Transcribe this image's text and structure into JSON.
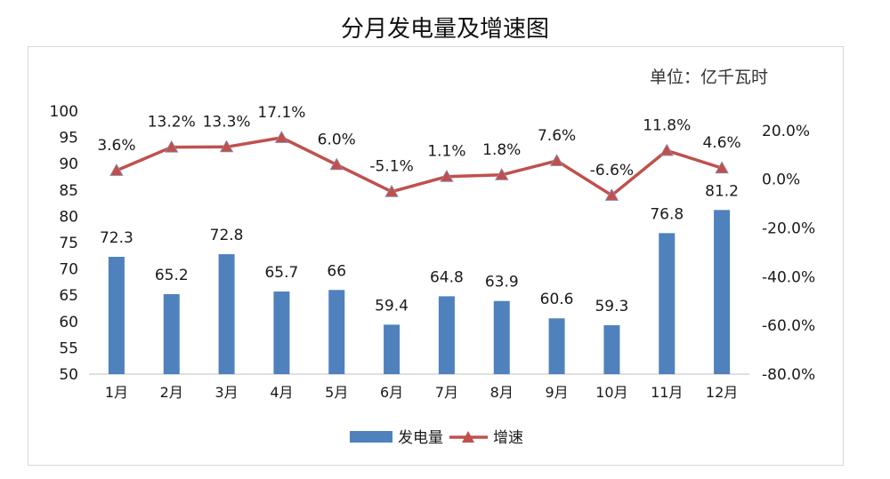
{
  "title": "分月发电量及增速图",
  "unit_label": "单位：亿千瓦时",
  "colors": {
    "bar": "#4f81bd",
    "line": "#c0504d",
    "text": "#1a1a1a",
    "axis": "#bfbfbf"
  },
  "chart_data": {
    "type": "bar",
    "title": "分月发电量及增速图",
    "categories": [
      "1月",
      "2月",
      "3月",
      "4月",
      "5月",
      "6月",
      "7月",
      "8月",
      "9月",
      "10月",
      "11月",
      "12月"
    ],
    "series": [
      {
        "name": "发电量",
        "type": "bar",
        "axis": "left",
        "values": [
          72.3,
          65.2,
          72.8,
          65.7,
          66,
          59.4,
          64.8,
          63.9,
          60.6,
          59.3,
          76.8,
          81.2
        ],
        "labels": [
          "72.3",
          "65.2",
          "72.8",
          "65.7",
          "66",
          "59.4",
          "64.8",
          "63.9",
          "60.6",
          "59.3",
          "76.8",
          "81.2"
        ]
      },
      {
        "name": "增速",
        "type": "line",
        "axis": "right",
        "values": [
          3.6,
          13.2,
          13.3,
          17.1,
          6.0,
          -5.1,
          1.1,
          1.8,
          7.6,
          -6.6,
          11.8,
          4.6
        ],
        "labels": [
          "3.6%",
          "13.2%",
          "13.3%",
          "17.1%",
          "6.0%",
          "-5.1%",
          "1.1%",
          "1.8%",
          "7.6%",
          "-6.6%",
          "11.8%",
          "4.6%"
        ]
      }
    ],
    "y_left": {
      "min": 50,
      "max": 100,
      "ticks": [
        "50",
        "55",
        "60",
        "65",
        "70",
        "75",
        "80",
        "85",
        "90",
        "95",
        "100"
      ]
    },
    "y_right": {
      "min": -80,
      "max": 28,
      "ticks": [
        "-80.0%",
        "-60.0%",
        "-40.0%",
        "-20.0%",
        "0.0%",
        "20.0%"
      ],
      "tick_values": [
        -80,
        -60,
        -40,
        -20,
        0,
        20
      ]
    },
    "legend_position": "bottom",
    "grid": false
  }
}
